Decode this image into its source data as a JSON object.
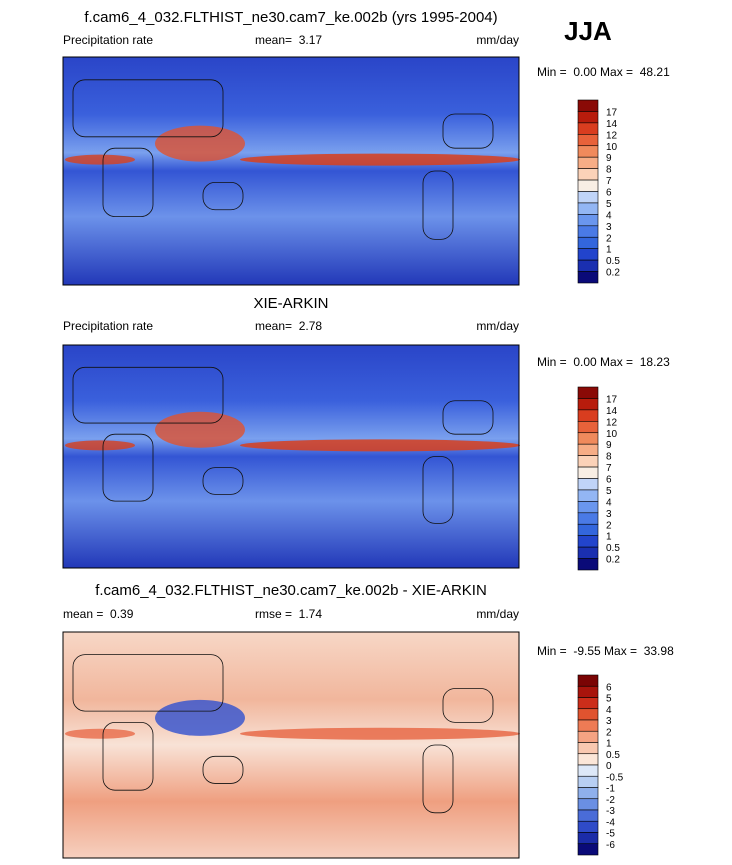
{
  "season": "JJA",
  "panels": [
    {
      "title": "f.cam6_4_032.FLTHIST_ne30.cam7_ke.002b (yrs 1995-2004)",
      "left_label": "Precipitation rate",
      "center_label": "mean=  3.17",
      "right_label": "mm/day",
      "minmax": "Min =  0.00 Max =  48.21",
      "colorbar": {
        "labels": [
          "17",
          "14",
          "12",
          "10",
          "9",
          "8",
          "7",
          "6",
          "5",
          "4",
          "3",
          "2",
          "1",
          "0.5",
          "0.2"
        ],
        "colors": [
          "#8a0a06",
          "#b81c0c",
          "#d93d1f",
          "#e8623a",
          "#f08a5c",
          "#f7ad86",
          "#fbd2b8",
          "#f8eee4",
          "#c0d4f8",
          "#93b6f4",
          "#6a96ee",
          "#4a7ae6",
          "#3366dd",
          "#2244cc",
          "#1a2fb0",
          "#0a0a78"
        ]
      }
    },
    {
      "title": "XIE-ARKIN",
      "left_label": "Precipitation rate",
      "center_label": "mean=  2.78",
      "right_label": "mm/day",
      "minmax": "Min =  0.00 Max =  18.23",
      "colorbar": {
        "labels": [
          "17",
          "14",
          "12",
          "10",
          "9",
          "8",
          "7",
          "6",
          "5",
          "4",
          "3",
          "2",
          "1",
          "0.5",
          "0.2"
        ],
        "colors": [
          "#8a0a06",
          "#b81c0c",
          "#d93d1f",
          "#e8623a",
          "#f08a5c",
          "#f7ad86",
          "#fbd2b8",
          "#f8eee4",
          "#c0d4f8",
          "#93b6f4",
          "#6a96ee",
          "#4a7ae6",
          "#3366dd",
          "#2244cc",
          "#1a2fb0",
          "#0a0a78"
        ]
      }
    },
    {
      "title": "f.cam6_4_032.FLTHIST_ne30.cam7_ke.002b - XIE-ARKIN",
      "left_label": "mean =  0.39",
      "center_label": "rmse =  1.74",
      "right_label": "mm/day",
      "minmax": "Min =  -9.55 Max =  33.98",
      "colorbar": {
        "labels": [
          "6",
          "5",
          "4",
          "3",
          "2",
          "1",
          "0.5",
          "0",
          "-0.5",
          "-1",
          "-2",
          "-3",
          "-4",
          "-5",
          "-6"
        ],
        "colors": [
          "#7a0404",
          "#a8140c",
          "#cc2d1a",
          "#e0532f",
          "#ee7b55",
          "#f5a383",
          "#f9c8b0",
          "#fbe6d8",
          "#dde8f8",
          "#b8cff3",
          "#8fb0ec",
          "#6a8fe3",
          "#4a6cd8",
          "#2f4bc8",
          "#1b2ca8",
          "#0a0a78"
        ]
      }
    }
  ]
}
